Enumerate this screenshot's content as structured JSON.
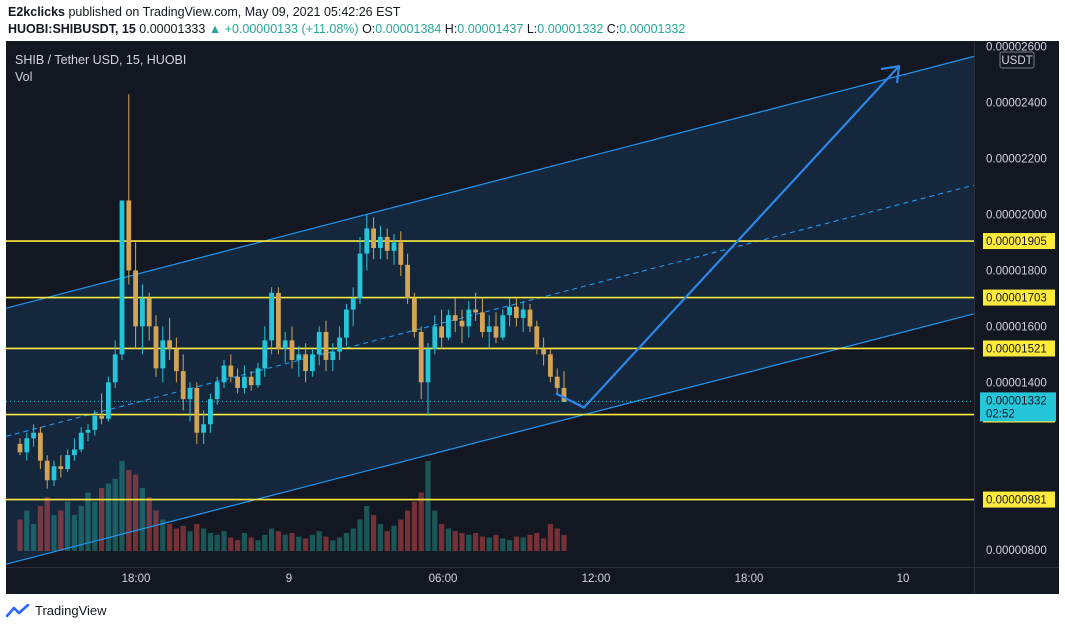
{
  "header": {
    "author": "E2kclicks",
    "published_text": "published on TradingView.com, May 09, 2021 05:42:26 EST",
    "symbol": "HUOBI:SHIBUSDT, 15",
    "last": "0.00001333",
    "change": "+0.00000133 (+11.08%)",
    "o_label": "O:",
    "o_value": "0.00001384",
    "h_label": "H:",
    "h_value": "0.00001437",
    "l_label": "L:",
    "l_value": "0.00001332",
    "c_label": "C:",
    "c_value": "0.00001332"
  },
  "legend": {
    "title": "SHIB / Tether USD, 15, HUOBI",
    "vol_label": "Vol"
  },
  "footer": {
    "brand": "TradingView"
  },
  "colors": {
    "background": "#131722",
    "up": "#26c6da",
    "down": "#d3a456",
    "level_line": "#ffeb3b",
    "channel": "#2196f3",
    "current_price": "#26c6da"
  },
  "chart_data": {
    "type": "candlestick",
    "currency_label": "USDT",
    "y_range": [
      7.4e-06,
      2.62e-05
    ],
    "y_ticks": [
      {
        "value": 2.6e-05,
        "label": "0.00002600"
      },
      {
        "value": 2.4e-05,
        "label": "0.00002400"
      },
      {
        "value": 2.2e-05,
        "label": "0.00002200"
      },
      {
        "value": 2e-05,
        "label": "0.00002000"
      },
      {
        "value": 1.8e-05,
        "label": "0.00001800"
      },
      {
        "value": 1.6e-05,
        "label": "0.00001600"
      },
      {
        "value": 1.4e-05,
        "label": "0.00001400"
      },
      {
        "value": 8e-06,
        "label": "0.00000800"
      }
    ],
    "x_ticks": [
      "18:00",
      "9",
      "06:00",
      "12:00",
      "18:00",
      "10"
    ],
    "horizontal_levels": [
      {
        "value": 1.905e-05,
        "label": "0.00001905"
      },
      {
        "value": 1.703e-05,
        "label": "0.00001703"
      },
      {
        "value": 1.521e-05,
        "label": "0.00001521"
      },
      {
        "value": 1.285e-05,
        "label": "0.00001285"
      },
      {
        "value": 9.81e-06,
        "label": "0.00000981"
      }
    ],
    "current_price": {
      "value": 1.332e-05,
      "label": "0.00001332",
      "countdown": "02:52"
    },
    "candles": [
      {
        "o": 1.18,
        "h": 1.2,
        "l": 1.14,
        "c": 1.15
      },
      {
        "o": 1.15,
        "h": 1.22,
        "l": 1.12,
        "c": 1.2
      },
      {
        "o": 1.2,
        "h": 1.25,
        "l": 1.17,
        "c": 1.22
      },
      {
        "o": 1.22,
        "h": 1.24,
        "l": 1.09,
        "c": 1.12
      },
      {
        "o": 1.12,
        "h": 1.14,
        "l": 1.02,
        "c": 1.05
      },
      {
        "o": 1.05,
        "h": 1.12,
        "l": 1.03,
        "c": 1.1
      },
      {
        "o": 1.1,
        "h": 1.14,
        "l": 1.06,
        "c": 1.09
      },
      {
        "o": 1.09,
        "h": 1.16,
        "l": 1.08,
        "c": 1.14
      },
      {
        "o": 1.14,
        "h": 1.2,
        "l": 1.12,
        "c": 1.16
      },
      {
        "o": 1.16,
        "h": 1.24,
        "l": 1.15,
        "c": 1.22
      },
      {
        "o": 1.22,
        "h": 1.25,
        "l": 1.19,
        "c": 1.23
      },
      {
        "o": 1.23,
        "h": 1.3,
        "l": 1.21,
        "c": 1.28
      },
      {
        "o": 1.28,
        "h": 1.36,
        "l": 1.25,
        "c": 1.27
      },
      {
        "o": 1.27,
        "h": 1.42,
        "l": 1.26,
        "c": 1.4
      },
      {
        "o": 1.4,
        "h": 1.55,
        "l": 1.38,
        "c": 1.5
      },
      {
        "o": 1.5,
        "h": 2.05,
        "l": 1.48,
        "c": 2.05
      },
      {
        "o": 2.05,
        "h": 2.43,
        "l": 1.75,
        "c": 1.8
      },
      {
        "o": 1.8,
        "h": 1.9,
        "l": 1.52,
        "c": 1.6
      },
      {
        "o": 1.6,
        "h": 1.75,
        "l": 1.5,
        "c": 1.7
      },
      {
        "o": 1.7,
        "h": 1.72,
        "l": 1.55,
        "c": 1.6
      },
      {
        "o": 1.6,
        "h": 1.64,
        "l": 1.42,
        "c": 1.45
      },
      {
        "o": 1.45,
        "h": 1.6,
        "l": 1.4,
        "c": 1.55
      },
      {
        "o": 1.55,
        "h": 1.63,
        "l": 1.48,
        "c": 1.52
      },
      {
        "o": 1.52,
        "h": 1.56,
        "l": 1.4,
        "c": 1.44
      },
      {
        "o": 1.44,
        "h": 1.5,
        "l": 1.3,
        "c": 1.34
      },
      {
        "o": 1.34,
        "h": 1.4,
        "l": 1.26,
        "c": 1.38
      },
      {
        "o": 1.38,
        "h": 1.4,
        "l": 1.18,
        "c": 1.22
      },
      {
        "o": 1.22,
        "h": 1.3,
        "l": 1.18,
        "c": 1.25
      },
      {
        "o": 1.25,
        "h": 1.36,
        "l": 1.22,
        "c": 1.34
      },
      {
        "o": 1.34,
        "h": 1.42,
        "l": 1.32,
        "c": 1.4
      },
      {
        "o": 1.4,
        "h": 1.48,
        "l": 1.38,
        "c": 1.46
      },
      {
        "o": 1.46,
        "h": 1.5,
        "l": 1.4,
        "c": 1.42
      },
      {
        "o": 1.42,
        "h": 1.45,
        "l": 1.36,
        "c": 1.38
      },
      {
        "o": 1.38,
        "h": 1.46,
        "l": 1.36,
        "c": 1.42
      },
      {
        "o": 1.42,
        "h": 1.44,
        "l": 1.37,
        "c": 1.39
      },
      {
        "o": 1.39,
        "h": 1.47,
        "l": 1.38,
        "c": 1.45
      },
      {
        "o": 1.45,
        "h": 1.6,
        "l": 1.42,
        "c": 1.55
      },
      {
        "o": 1.55,
        "h": 1.74,
        "l": 1.5,
        "c": 1.72
      },
      {
        "o": 1.72,
        "h": 1.74,
        "l": 1.5,
        "c": 1.52
      },
      {
        "o": 1.52,
        "h": 1.58,
        "l": 1.47,
        "c": 1.55
      },
      {
        "o": 1.55,
        "h": 1.6,
        "l": 1.45,
        "c": 1.48
      },
      {
        "o": 1.48,
        "h": 1.53,
        "l": 1.42,
        "c": 1.5
      },
      {
        "o": 1.5,
        "h": 1.54,
        "l": 1.4,
        "c": 1.44
      },
      {
        "o": 1.44,
        "h": 1.52,
        "l": 1.42,
        "c": 1.5
      },
      {
        "o": 1.5,
        "h": 1.6,
        "l": 1.46,
        "c": 1.58
      },
      {
        "o": 1.58,
        "h": 1.62,
        "l": 1.44,
        "c": 1.48
      },
      {
        "o": 1.48,
        "h": 1.54,
        "l": 1.44,
        "c": 1.51
      },
      {
        "o": 1.51,
        "h": 1.6,
        "l": 1.48,
        "c": 1.56
      },
      {
        "o": 1.56,
        "h": 1.68,
        "l": 1.53,
        "c": 1.66
      },
      {
        "o": 1.66,
        "h": 1.74,
        "l": 1.6,
        "c": 1.7
      },
      {
        "o": 1.7,
        "h": 1.92,
        "l": 1.68,
        "c": 1.86
      },
      {
        "o": 1.86,
        "h": 2.0,
        "l": 1.8,
        "c": 1.95
      },
      {
        "o": 1.95,
        "h": 1.99,
        "l": 1.84,
        "c": 1.88
      },
      {
        "o": 1.88,
        "h": 1.96,
        "l": 1.84,
        "c": 1.92
      },
      {
        "o": 1.92,
        "h": 1.95,
        "l": 1.84,
        "c": 1.87
      },
      {
        "o": 1.87,
        "h": 1.93,
        "l": 1.82,
        "c": 1.9
      },
      {
        "o": 1.9,
        "h": 1.94,
        "l": 1.78,
        "c": 1.82
      },
      {
        "o": 1.82,
        "h": 1.86,
        "l": 1.68,
        "c": 1.7
      },
      {
        "o": 1.7,
        "h": 1.72,
        "l": 1.56,
        "c": 1.58
      },
      {
        "o": 1.58,
        "h": 1.6,
        "l": 1.34,
        "c": 1.4
      },
      {
        "o": 1.4,
        "h": 1.54,
        "l": 1.28,
        "c": 1.52
      },
      {
        "o": 1.52,
        "h": 1.64,
        "l": 1.5,
        "c": 1.6
      },
      {
        "o": 1.6,
        "h": 1.66,
        "l": 1.52,
        "c": 1.56
      },
      {
        "o": 1.56,
        "h": 1.66,
        "l": 1.55,
        "c": 1.64
      },
      {
        "o": 1.64,
        "h": 1.7,
        "l": 1.58,
        "c": 1.62
      },
      {
        "o": 1.62,
        "h": 1.66,
        "l": 1.54,
        "c": 1.6
      },
      {
        "o": 1.6,
        "h": 1.69,
        "l": 1.56,
        "c": 1.66
      },
      {
        "o": 1.66,
        "h": 1.72,
        "l": 1.62,
        "c": 1.65
      },
      {
        "o": 1.65,
        "h": 1.7,
        "l": 1.56,
        "c": 1.58
      },
      {
        "o": 1.58,
        "h": 1.64,
        "l": 1.52,
        "c": 1.6
      },
      {
        "o": 1.6,
        "h": 1.65,
        "l": 1.54,
        "c": 1.56
      },
      {
        "o": 1.56,
        "h": 1.66,
        "l": 1.55,
        "c": 1.64
      },
      {
        "o": 1.64,
        "h": 1.7,
        "l": 1.6,
        "c": 1.67
      },
      {
        "o": 1.67,
        "h": 1.7,
        "l": 1.6,
        "c": 1.63
      },
      {
        "o": 1.63,
        "h": 1.69,
        "l": 1.58,
        "c": 1.66
      },
      {
        "o": 1.66,
        "h": 1.68,
        "l": 1.58,
        "c": 1.6
      },
      {
        "o": 1.6,
        "h": 1.62,
        "l": 1.5,
        "c": 1.52
      },
      {
        "o": 1.52,
        "h": 1.56,
        "l": 1.46,
        "c": 1.5
      },
      {
        "o": 1.5,
        "h": 1.52,
        "l": 1.4,
        "c": 1.42
      },
      {
        "o": 1.42,
        "h": 1.45,
        "l": 1.36,
        "c": 1.38
      },
      {
        "o": 1.38,
        "h": 1.44,
        "l": 1.33,
        "c": 1.33
      }
    ],
    "candle_scale": 1e-05,
    "volumes": [
      0.35,
      0.45,
      0.3,
      0.5,
      0.6,
      0.4,
      0.45,
      0.55,
      0.4,
      0.5,
      0.65,
      0.55,
      0.7,
      0.75,
      0.8,
      1.0,
      0.9,
      0.85,
      0.7,
      0.6,
      0.45,
      0.35,
      0.3,
      0.25,
      0.28,
      0.22,
      0.3,
      0.25,
      0.2,
      0.18,
      0.22,
      0.15,
      0.12,
      0.2,
      0.15,
      0.12,
      0.18,
      0.25,
      0.22,
      0.18,
      0.2,
      0.16,
      0.14,
      0.18,
      0.22,
      0.16,
      0.12,
      0.15,
      0.2,
      0.25,
      0.35,
      0.5,
      0.4,
      0.3,
      0.22,
      0.28,
      0.35,
      0.45,
      0.55,
      0.65,
      1.0,
      0.45,
      0.3,
      0.25,
      0.22,
      0.2,
      0.18,
      0.2,
      0.16,
      0.15,
      0.18,
      0.14,
      0.12,
      0.16,
      0.15,
      0.18,
      0.2,
      0.14,
      0.3,
      0.25,
      0.18
    ],
    "annotations": {
      "channel": "ascending parallel channel with dashed median line",
      "projection": "down to ~0.0000131 near 12:00, then up toward ~0.0000253 near 10"
    }
  }
}
